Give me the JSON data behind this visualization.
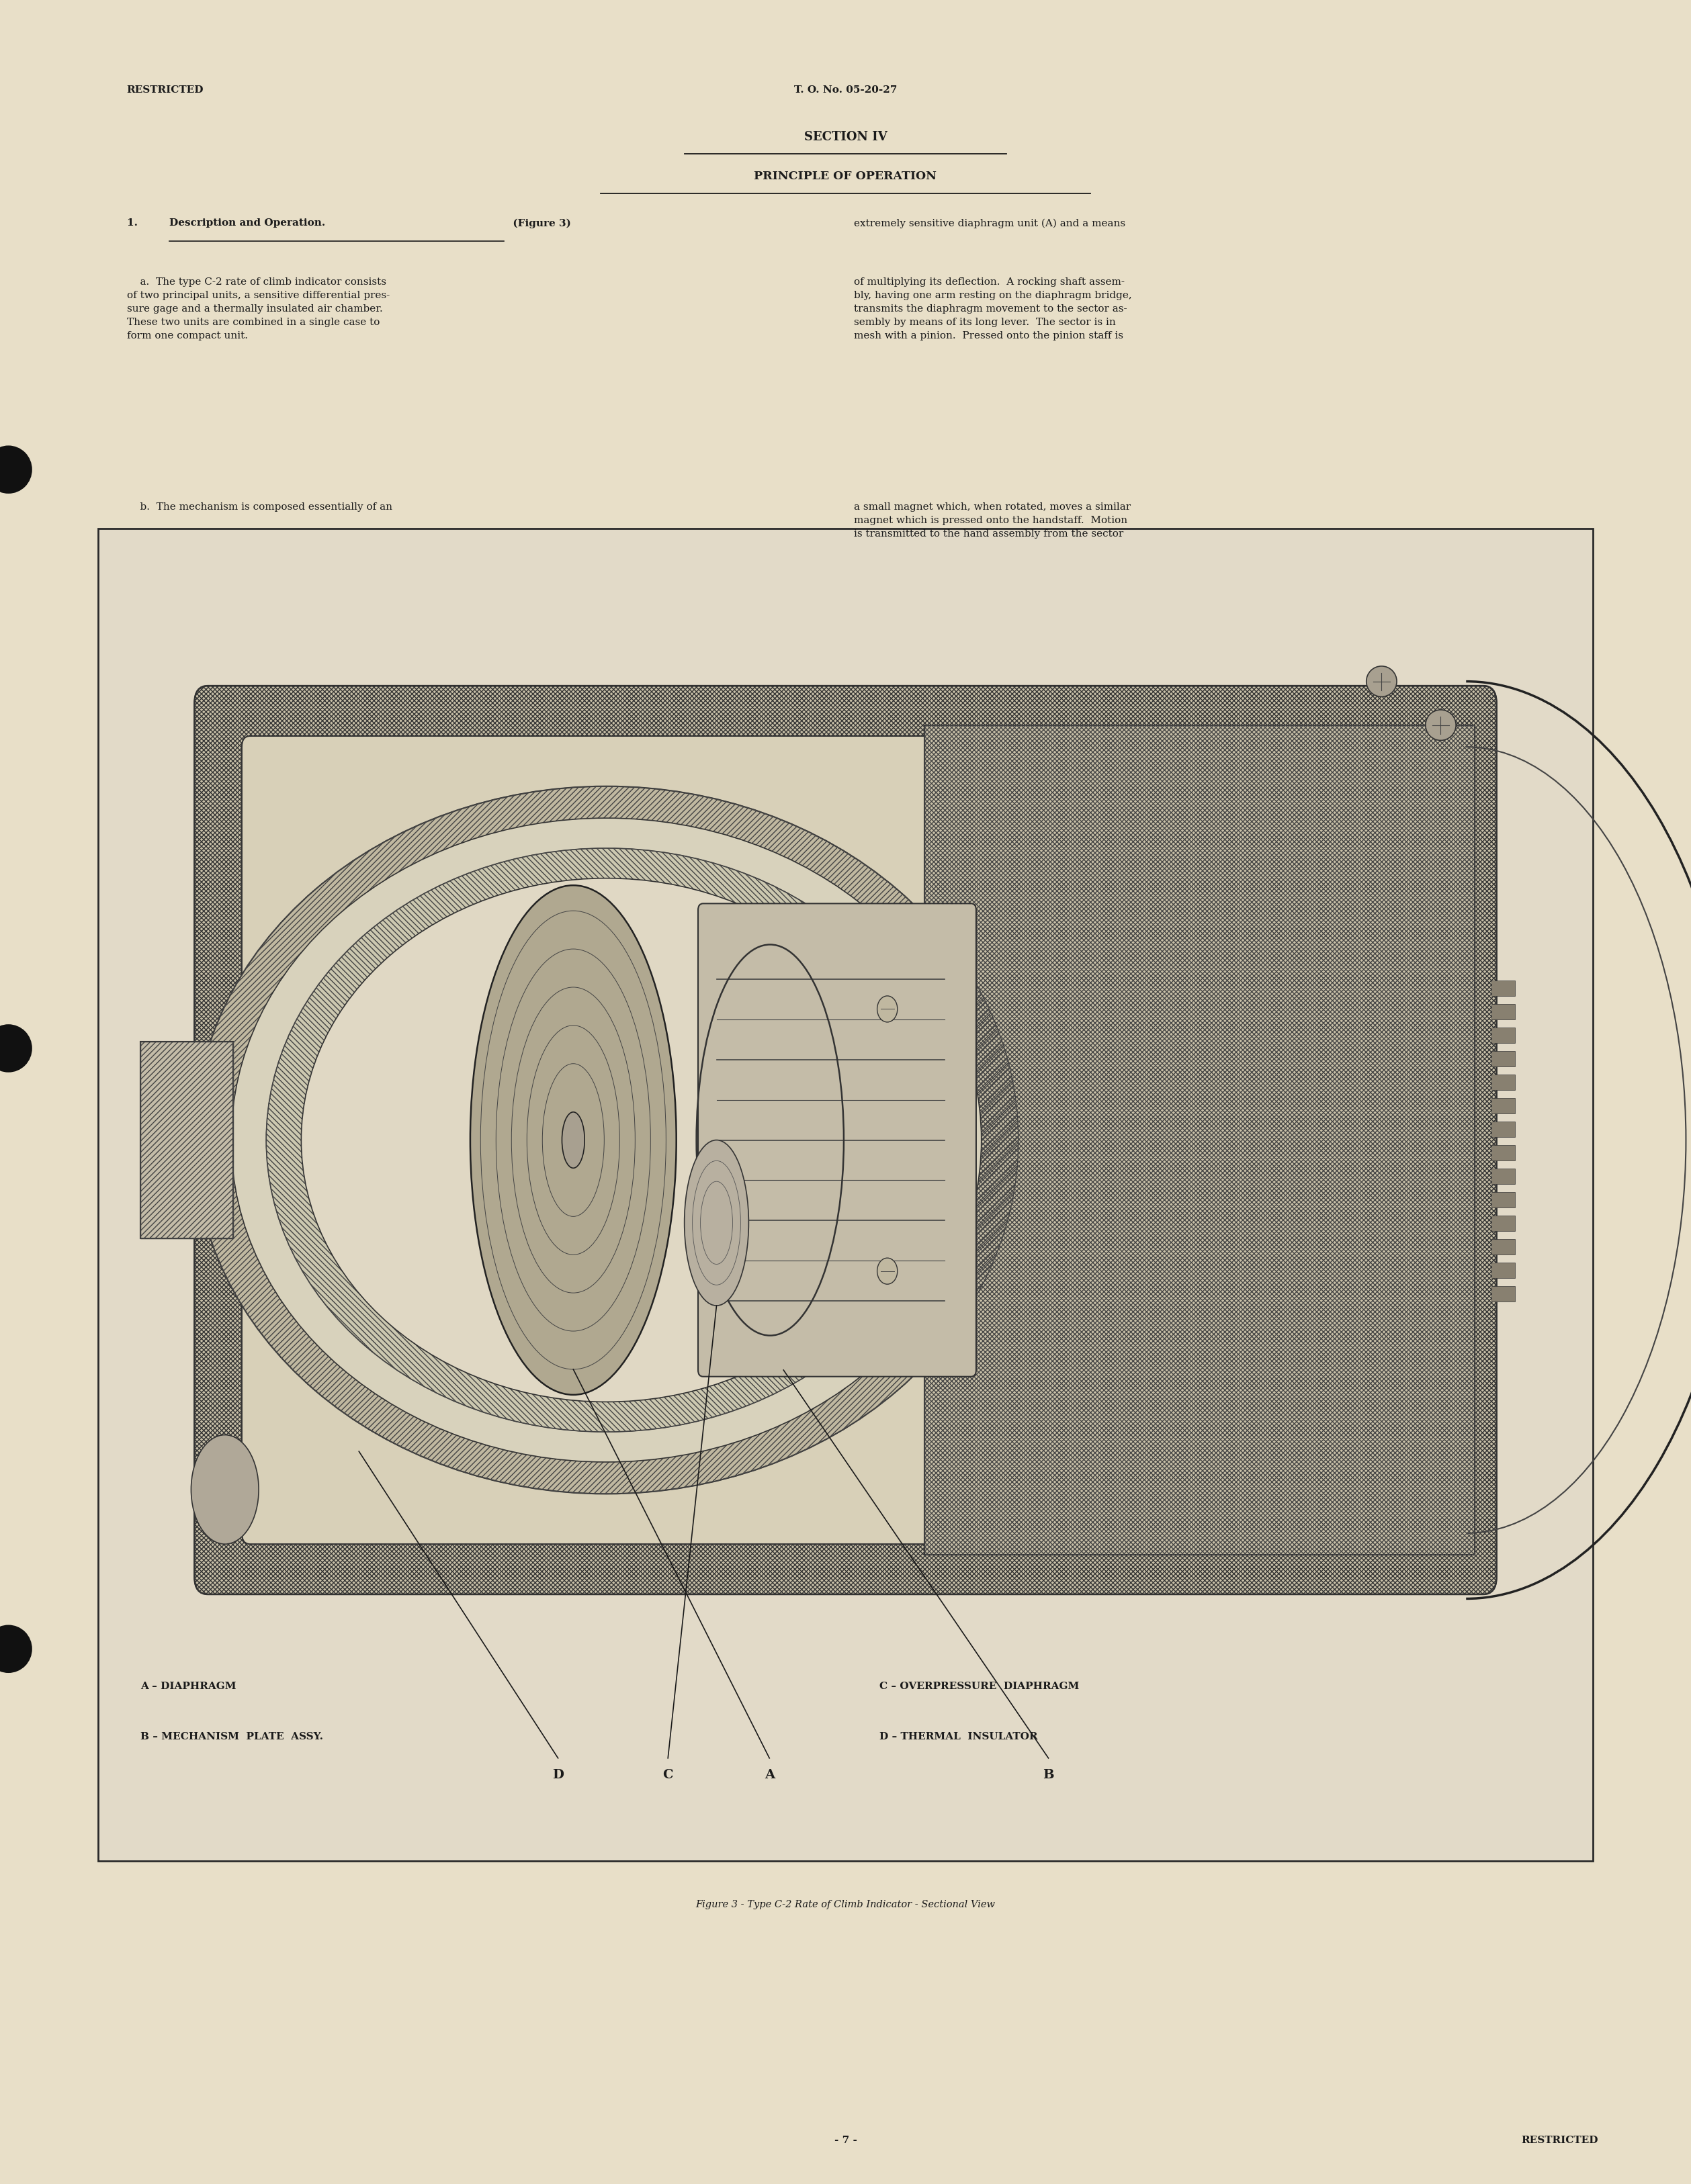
{
  "bg_color": "#e8dfc8",
  "text_color": "#1a1a1a",
  "header_left": "RESTRICTED",
  "header_center": "T. O. No. 05-20-27",
  "section_title": "SECTION IV",
  "section_subtitle": "PRINCIPLE OF OPERATION",
  "footer_center": "- 7 -",
  "footer_right": "RESTRICTED",
  "left_col_para_a": "    a.  The type C-2 rate of climb indicator consists\nof two principal units, a sensitive differential pres-\nsure gage and a thermally insulated air chamber.\nThese two units are combined in a single case to\nform one compact unit.",
  "left_col_para_b": "    b.  The mechanism is composed essentially of an",
  "right_col_text": "extremely sensitive diaphragm unit (A) and a means\nof multiplying its deflection.  A rocking shaft assem-\nbly, having one arm resting on the diaphragm bridge,\ntransmits the diaphragm movement to the sector as-\nsembly by means of its long lever.  The sector is in\nmesh with a pinion.  Pressed onto the pinion staff is\na small magnet which, when rotated, moves a similar\nmagnet which is pressed onto the handstaff.  Motion\nis transmitted to the hand assembly from the sector",
  "figure_caption": "Figure 3 - Type C-2 Rate of Climb Indicator - Sectional View",
  "legend_line1": "A – DIAPHRAGM                    C – OVERPRESSURE  DIAPHRAGM",
  "legend_line2": "B – MECHANISM  PLATE  ASSY. D – THERMAL  INSULATOR"
}
